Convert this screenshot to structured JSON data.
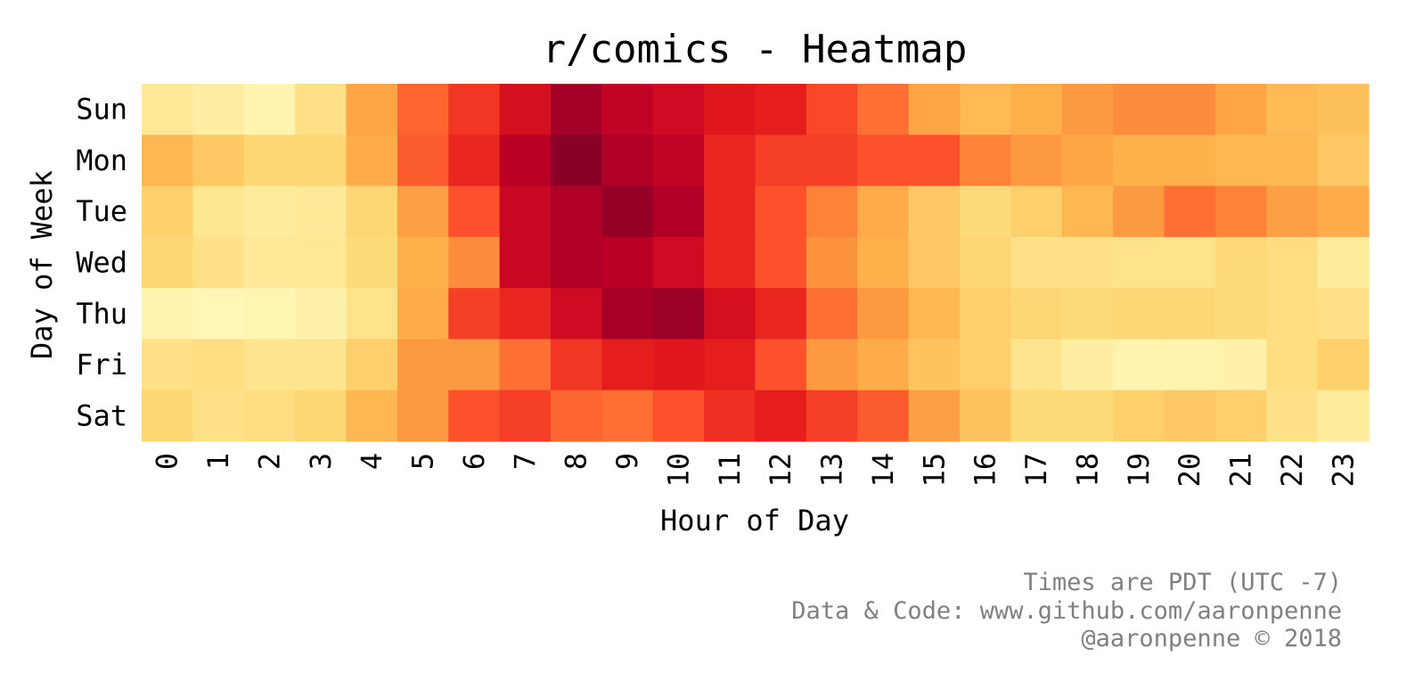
{
  "chart_data": {
    "type": "heatmap",
    "title": "r/comics - Heatmap",
    "xlabel": "Hour of Day",
    "ylabel": "Day of Week",
    "x": [
      "0",
      "1",
      "2",
      "3",
      "4",
      "5",
      "6",
      "7",
      "8",
      "9",
      "10",
      "11",
      "12",
      "13",
      "14",
      "15",
      "16",
      "17",
      "18",
      "19",
      "20",
      "21",
      "22",
      "23"
    ],
    "y": [
      "Sun",
      "Mon",
      "Tue",
      "Wed",
      "Thu",
      "Fri",
      "Sat"
    ],
    "values": [
      [
        0.15,
        0.12,
        0.08,
        0.2,
        0.42,
        0.58,
        0.68,
        0.8,
        0.93,
        0.86,
        0.82,
        0.76,
        0.74,
        0.64,
        0.56,
        0.42,
        0.35,
        0.38,
        0.46,
        0.5,
        0.5,
        0.42,
        0.35,
        0.33
      ],
      [
        0.36,
        0.3,
        0.26,
        0.26,
        0.4,
        0.6,
        0.72,
        0.88,
        0.98,
        0.9,
        0.86,
        0.72,
        0.66,
        0.66,
        0.62,
        0.62,
        0.52,
        0.46,
        0.42,
        0.38,
        0.38,
        0.36,
        0.36,
        0.3
      ],
      [
        0.28,
        0.17,
        0.14,
        0.15,
        0.26,
        0.44,
        0.62,
        0.84,
        0.9,
        0.96,
        0.9,
        0.72,
        0.62,
        0.52,
        0.4,
        0.3,
        0.24,
        0.28,
        0.36,
        0.46,
        0.56,
        0.52,
        0.44,
        0.4
      ],
      [
        0.26,
        0.2,
        0.15,
        0.16,
        0.24,
        0.38,
        0.5,
        0.84,
        0.9,
        0.88,
        0.82,
        0.72,
        0.62,
        0.48,
        0.38,
        0.3,
        0.26,
        0.2,
        0.2,
        0.19,
        0.19,
        0.24,
        0.22,
        0.14
      ],
      [
        0.08,
        0.06,
        0.07,
        0.1,
        0.19,
        0.4,
        0.66,
        0.72,
        0.82,
        0.92,
        0.94,
        0.8,
        0.72,
        0.56,
        0.46,
        0.36,
        0.28,
        0.26,
        0.24,
        0.26,
        0.26,
        0.24,
        0.22,
        0.2
      ],
      [
        0.2,
        0.22,
        0.18,
        0.18,
        0.28,
        0.46,
        0.46,
        0.56,
        0.68,
        0.74,
        0.76,
        0.74,
        0.62,
        0.46,
        0.4,
        0.32,
        0.28,
        0.18,
        0.12,
        0.08,
        0.08,
        0.1,
        0.22,
        0.28
      ],
      [
        0.26,
        0.2,
        0.22,
        0.26,
        0.36,
        0.46,
        0.62,
        0.66,
        0.58,
        0.56,
        0.62,
        0.7,
        0.74,
        0.66,
        0.6,
        0.44,
        0.32,
        0.24,
        0.24,
        0.28,
        0.3,
        0.28,
        0.2,
        0.14
      ]
    ],
    "colormap": "YlOrRd",
    "grid": false,
    "legend": "none"
  },
  "footer": {
    "line1": "Times are PDT (UTC -7)",
    "line2": "Data & Code: www.github.com/aaronpenne",
    "line3": "@aaronpenne © 2018"
  }
}
